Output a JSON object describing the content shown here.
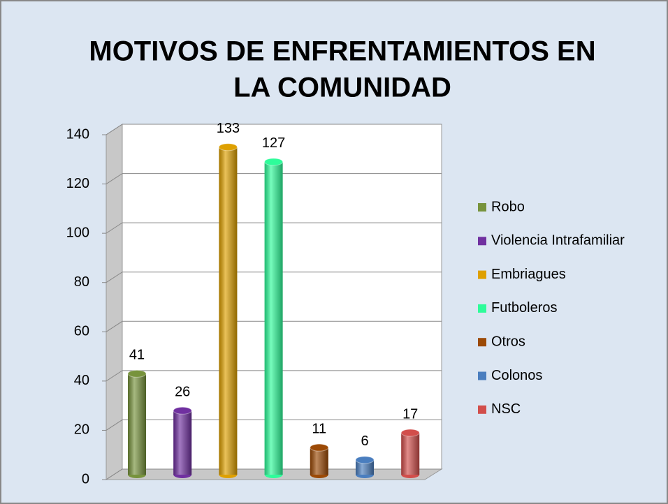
{
  "chart_data": {
    "type": "bar3d",
    "title": "MOTIVOS DE ENFRENTAMIENTOS EN",
    "title_line2": "LA COMUNIDAD",
    "series": [
      {
        "name": "Robo",
        "color": "#77933c",
        "values": [
          41
        ]
      },
      {
        "name": "Violencia Intrafamiliar",
        "color": "#7030a0",
        "values": [
          26
        ]
      },
      {
        "name": "Embriagues",
        "color": "#dea000",
        "values": [
          133
        ]
      },
      {
        "name": "Futboleros",
        "color": "#2efc9a",
        "values": [
          127
        ]
      },
      {
        "name": "Otros",
        "color": "#9c4a06",
        "values": [
          11
        ]
      },
      {
        "name": "Colonos",
        "color": "#4a7ebf",
        "values": [
          6
        ]
      },
      {
        "name": "NSC",
        "color": "#d24e4b",
        "values": [
          17
        ]
      }
    ],
    "ylim": [
      0,
      140
    ],
    "yticks": [
      0,
      20,
      40,
      60,
      80,
      100,
      120,
      140
    ],
    "grid": true,
    "legend": "right"
  }
}
